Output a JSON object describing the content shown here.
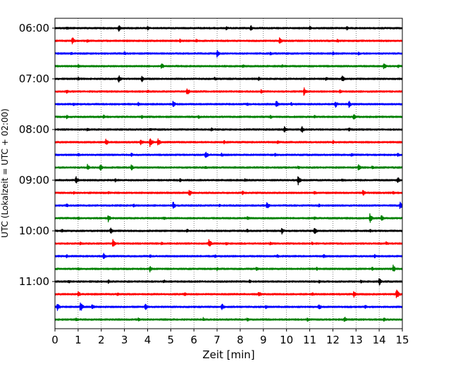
{
  "chart_data": {
    "type": "line",
    "title": "",
    "xlabel": "Zeit  [min]",
    "ylabel": "UTC (Lokalzeit = UTC + 02:00)",
    "xlim": [
      0,
      15
    ],
    "x_ticks": [
      "0",
      "1",
      "2",
      "3",
      "4",
      "5",
      "6",
      "7",
      "8",
      "9",
      "10",
      "11",
      "12",
      "13",
      "14",
      "15"
    ],
    "y_ticks": [
      "06:00",
      "07:00",
      "08:00",
      "09:00",
      "10:00",
      "11:00"
    ],
    "grid": "vertical dotted lines at each minute",
    "trace_interval_minutes": 15,
    "trace_colors": [
      "#000000",
      "#ff0000",
      "#0000ff",
      "#008000"
    ],
    "traces": [
      {
        "start": "06:00",
        "color": "#000000",
        "events": [
          [
            0.5,
            3
          ],
          [
            2.75,
            5
          ],
          [
            4.0,
            3
          ],
          [
            7.4,
            3
          ],
          [
            8.45,
            5
          ],
          [
            11.0,
            3
          ],
          [
            12.6,
            3
          ]
        ]
      },
      {
        "start": "06:15",
        "color": "#ff0000",
        "events": [
          [
            0.75,
            6
          ],
          [
            1.4,
            3
          ],
          [
            5.4,
            3
          ],
          [
            6.1,
            3
          ],
          [
            9.7,
            5
          ],
          [
            12.2,
            3
          ]
        ]
      },
      {
        "start": "06:30",
        "color": "#0000ff",
        "events": [
          [
            0.7,
            3
          ],
          [
            3.0,
            3
          ],
          [
            7.0,
            6
          ],
          [
            9.3,
            3
          ],
          [
            12.0,
            3
          ],
          [
            13.1,
            3
          ]
        ]
      },
      {
        "start": "06:45",
        "color": "#008000",
        "events": [
          [
            1.0,
            3
          ],
          [
            4.6,
            5
          ],
          [
            8.1,
            3
          ],
          [
            9.8,
            3
          ],
          [
            14.2,
            5
          ],
          [
            14.8,
            3
          ]
        ]
      },
      {
        "start": "07:00",
        "color": "#000000",
        "events": [
          [
            1.0,
            3
          ],
          [
            2.75,
            6
          ],
          [
            3.75,
            5
          ],
          [
            6.9,
            3
          ],
          [
            8.8,
            3
          ],
          [
            11.7,
            3
          ],
          [
            12.4,
            6
          ]
        ]
      },
      {
        "start": "07:15",
        "color": "#ff0000",
        "events": [
          [
            0.5,
            3
          ],
          [
            4.0,
            3
          ],
          [
            5.7,
            6
          ],
          [
            8.9,
            3
          ],
          [
            10.75,
            6
          ],
          [
            12.3,
            3
          ]
        ]
      },
      {
        "start": "07:30",
        "color": "#0000ff",
        "events": [
          [
            0.8,
            3
          ],
          [
            3.6,
            3
          ],
          [
            5.1,
            5
          ],
          [
            8.3,
            3
          ],
          [
            9.55,
            6
          ],
          [
            10.2,
            3
          ],
          [
            12.1,
            6
          ],
          [
            12.7,
            5
          ]
        ]
      },
      {
        "start": "07:45",
        "color": "#008000",
        "events": [
          [
            0.5,
            3
          ],
          [
            2.1,
            3
          ],
          [
            3.75,
            3
          ],
          [
            6.2,
            3
          ],
          [
            9.3,
            3
          ],
          [
            11.2,
            3
          ],
          [
            12.9,
            5
          ]
        ]
      },
      {
        "start": "08:00",
        "color": "#000000",
        "events": [
          [
            1.4,
            3
          ],
          [
            4.1,
            3
          ],
          [
            6.75,
            3
          ],
          [
            9.9,
            5
          ],
          [
            10.65,
            6
          ],
          [
            12.7,
            3
          ]
        ]
      },
      {
        "start": "08:15",
        "color": "#ff0000",
        "events": [
          [
            2.2,
            5
          ],
          [
            3.7,
            5
          ],
          [
            4.1,
            8
          ],
          [
            4.45,
            6
          ],
          [
            7.3,
            3
          ],
          [
            9.6,
            3
          ],
          [
            12.0,
            3
          ]
        ]
      },
      {
        "start": "08:30",
        "color": "#0000ff",
        "events": [
          [
            1.0,
            3
          ],
          [
            3.3,
            3
          ],
          [
            6.5,
            6
          ],
          [
            7.2,
            3
          ],
          [
            9.5,
            3
          ],
          [
            12.8,
            3
          ],
          [
            14.8,
            3
          ]
        ]
      },
      {
        "start": "08:45",
        "color": "#008000",
        "events": [
          [
            1.4,
            5
          ],
          [
            1.95,
            6
          ],
          [
            3.3,
            5
          ],
          [
            6.5,
            3
          ],
          [
            10.5,
            3
          ],
          [
            13.1,
            5
          ],
          [
            13.7,
            3
          ]
        ]
      },
      {
        "start": "09:00",
        "color": "#000000",
        "events": [
          [
            0.9,
            7
          ],
          [
            2.6,
            3
          ],
          [
            5.4,
            3
          ],
          [
            8.2,
            3
          ],
          [
            10.5,
            7
          ],
          [
            12.4,
            3
          ],
          [
            14.8,
            5
          ]
        ]
      },
      {
        "start": "09:15",
        "color": "#ff0000",
        "events": [
          [
            0.8,
            3
          ],
          [
            2.3,
            3
          ],
          [
            5.8,
            6
          ],
          [
            8.1,
            3
          ],
          [
            11.2,
            3
          ],
          [
            13.3,
            5
          ],
          [
            14.6,
            3
          ]
        ]
      },
      {
        "start": "09:30",
        "color": "#0000ff",
        "events": [
          [
            0.5,
            3
          ],
          [
            3.4,
            3
          ],
          [
            5.1,
            6
          ],
          [
            7.1,
            3
          ],
          [
            9.15,
            6
          ],
          [
            11.4,
            3
          ],
          [
            14.9,
            6
          ]
        ]
      },
      {
        "start": "09:45",
        "color": "#008000",
        "events": [
          [
            1.0,
            3
          ],
          [
            2.3,
            6
          ],
          [
            4.7,
            3
          ],
          [
            8.3,
            3
          ],
          [
            11.2,
            3
          ],
          [
            13.6,
            7
          ],
          [
            14.1,
            5
          ]
        ]
      },
      {
        "start": "10:00",
        "color": "#000000",
        "events": [
          [
            0.3,
            3
          ],
          [
            2.4,
            5
          ],
          [
            5.7,
            3
          ],
          [
            8.3,
            3
          ],
          [
            9.8,
            5
          ],
          [
            11.2,
            6
          ],
          [
            13.6,
            3
          ]
        ]
      },
      {
        "start": "10:15",
        "color": "#ff0000",
        "events": [
          [
            1.1,
            3
          ],
          [
            2.5,
            6
          ],
          [
            4.6,
            3
          ],
          [
            6.65,
            7
          ],
          [
            7.4,
            3
          ],
          [
            9.3,
            3
          ],
          [
            11.1,
            3
          ],
          [
            14.3,
            3
          ]
        ]
      },
      {
        "start": "10:30",
        "color": "#0000ff",
        "events": [
          [
            0.5,
            3
          ],
          [
            2.1,
            5
          ],
          [
            4.1,
            3
          ],
          [
            6.9,
            3
          ],
          [
            9.6,
            3
          ],
          [
            11.6,
            3
          ],
          [
            13.8,
            3
          ]
        ]
      },
      {
        "start": "10:45",
        "color": "#008000",
        "events": [
          [
            1.0,
            3
          ],
          [
            4.1,
            5
          ],
          [
            7.0,
            3
          ],
          [
            8.7,
            3
          ],
          [
            11.3,
            3
          ],
          [
            13.7,
            3
          ],
          [
            14.6,
            6
          ]
        ]
      },
      {
        "start": "11:00",
        "color": "#000000",
        "events": [
          [
            0.6,
            3
          ],
          [
            2.3,
            3
          ],
          [
            4.7,
            3
          ],
          [
            8.4,
            3
          ],
          [
            11.4,
            3
          ],
          [
            13.2,
            3
          ],
          [
            14.0,
            6
          ]
        ]
      },
      {
        "start": "11:15",
        "color": "#ff0000",
        "events": [
          [
            1.0,
            5
          ],
          [
            2.7,
            3
          ],
          [
            5.6,
            3
          ],
          [
            8.8,
            5
          ],
          [
            11.1,
            3
          ],
          [
            12.9,
            5
          ],
          [
            14.75,
            8
          ]
        ]
      },
      {
        "start": "11:30",
        "color": "#0000ff",
        "events": [
          [
            0.1,
            7
          ],
          [
            1.1,
            8
          ],
          [
            1.6,
            5
          ],
          [
            3.9,
            6
          ],
          [
            7.2,
            6
          ],
          [
            9.1,
            3
          ],
          [
            11.4,
            5
          ],
          [
            13.4,
            3
          ]
        ]
      },
      {
        "start": "11:45",
        "color": "#008000",
        "events": [
          [
            0.9,
            3
          ],
          [
            3.6,
            3
          ],
          [
            6.4,
            3
          ],
          [
            8.3,
            3
          ],
          [
            10.9,
            3
          ],
          [
            12.5,
            5
          ],
          [
            14.2,
            3
          ]
        ]
      }
    ]
  }
}
